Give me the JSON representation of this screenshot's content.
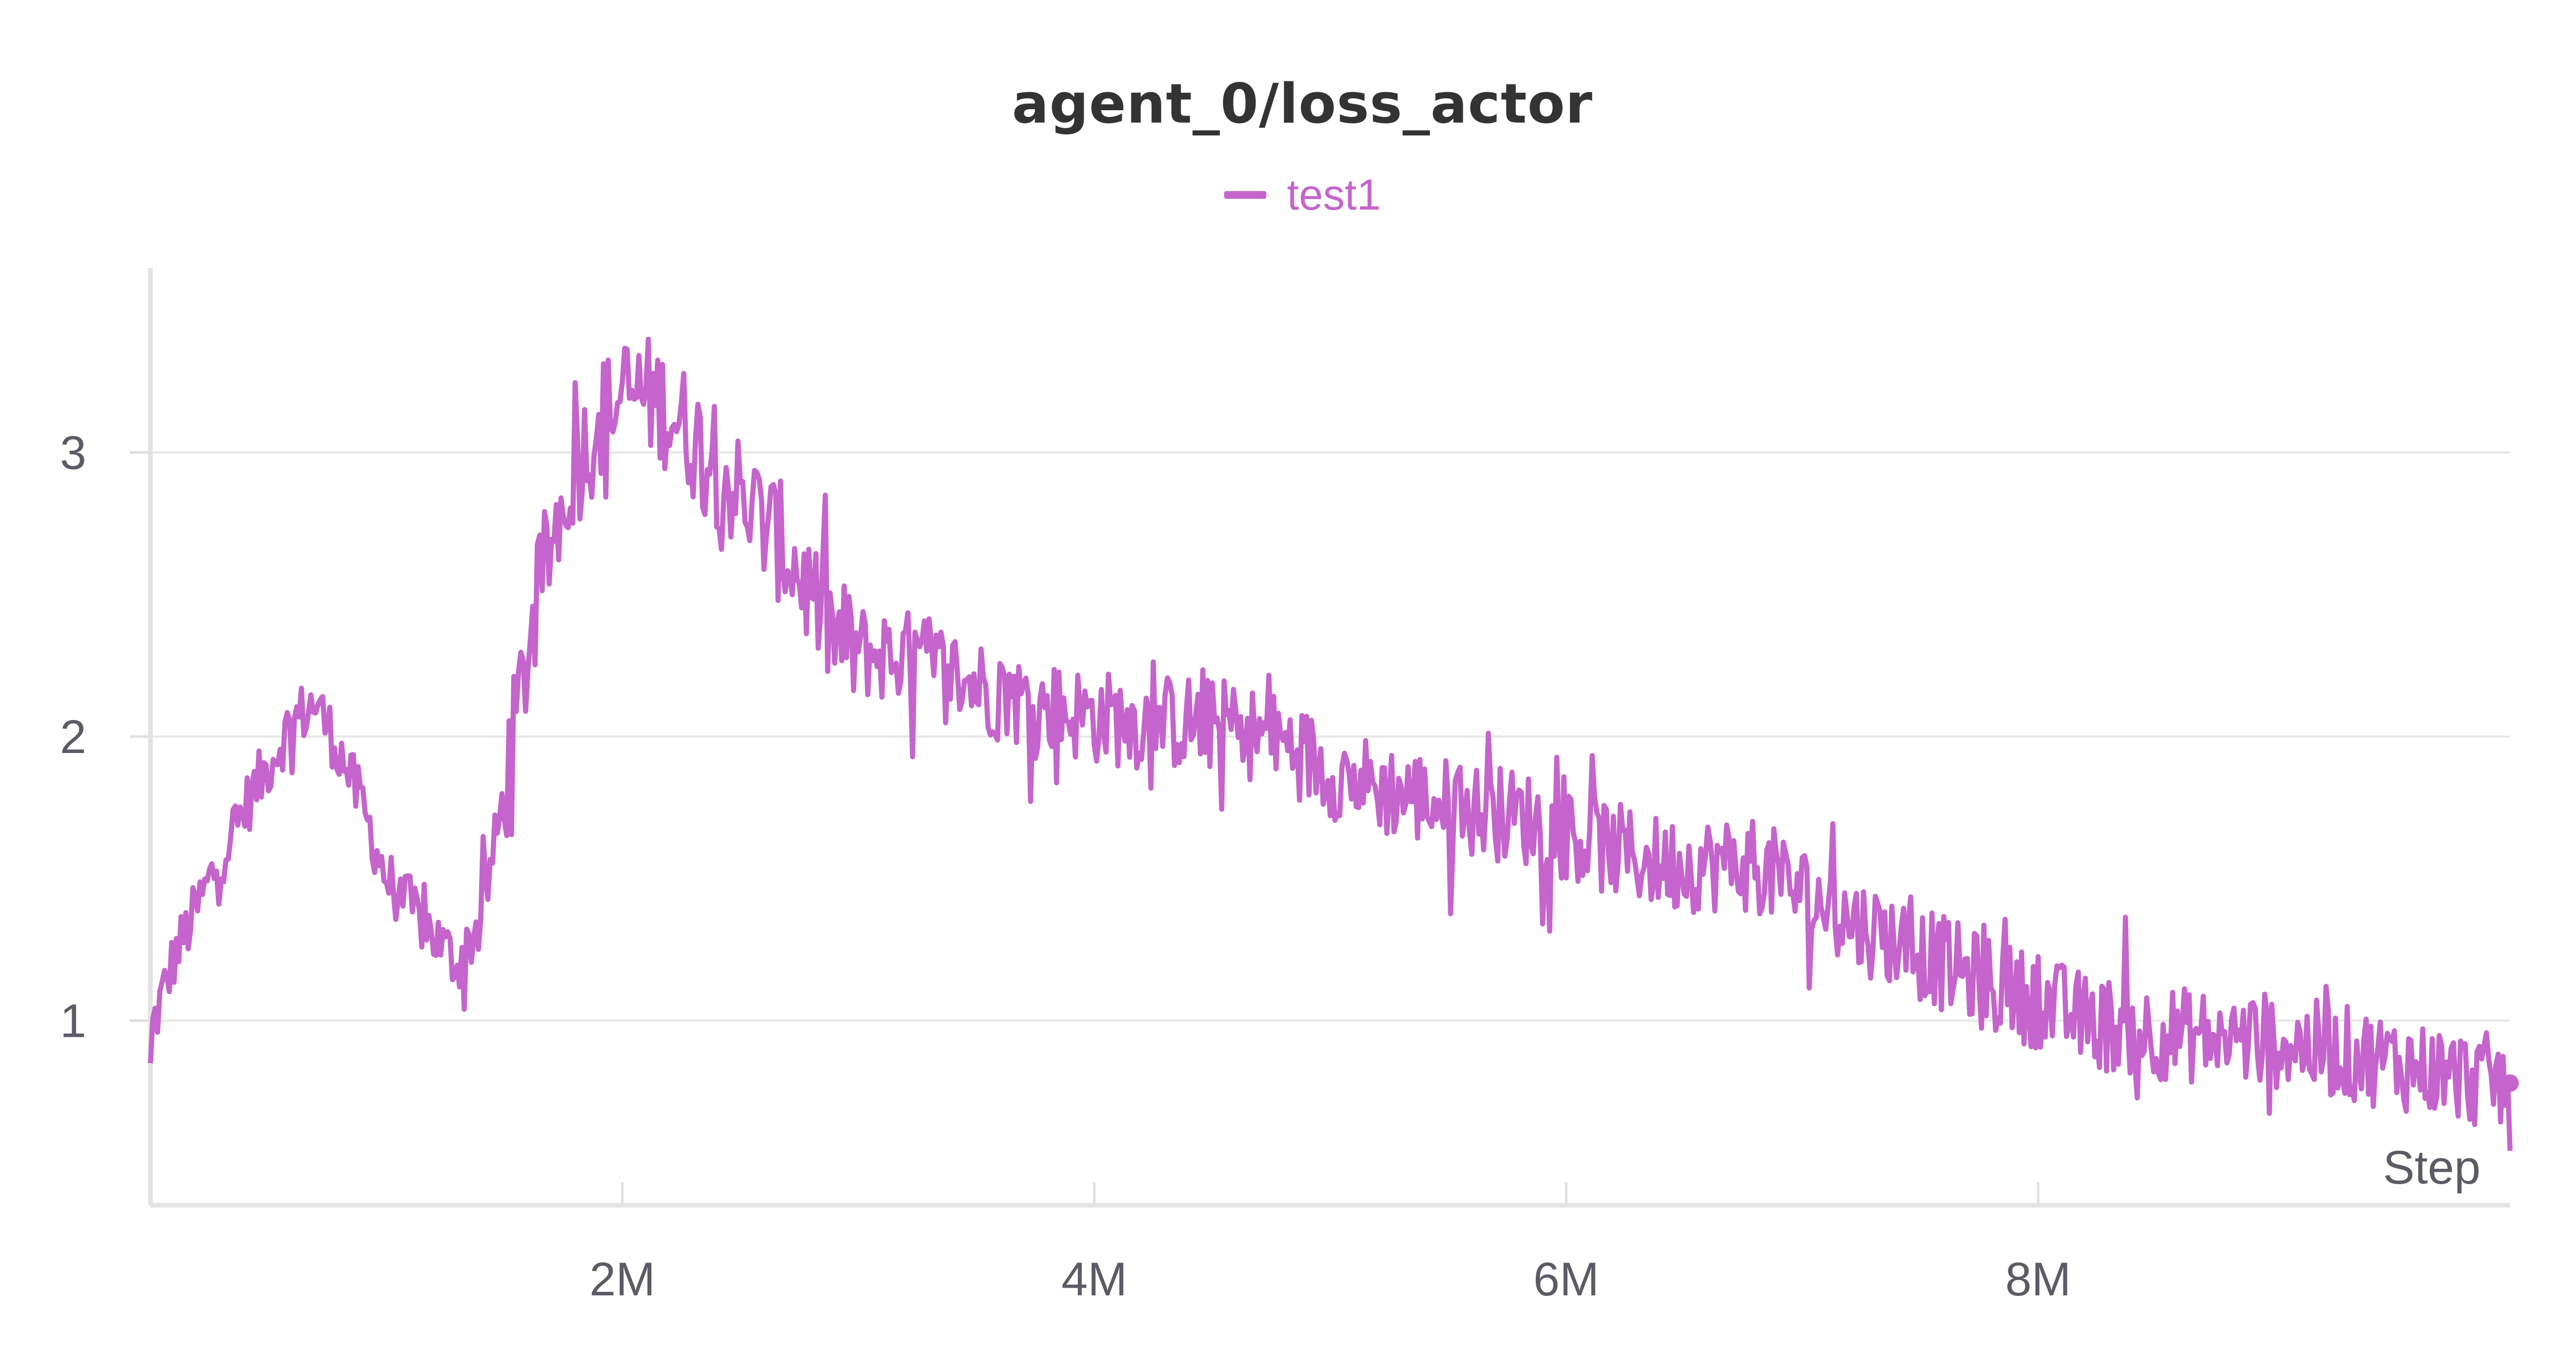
{
  "chart_data": {
    "type": "line",
    "title": "agent_0/loss_actor",
    "xlabel": "Step",
    "ylabel": "",
    "xlim": [
      0,
      10000000
    ],
    "ylim": [
      0.35,
      3.65
    ],
    "x_ticks": [
      {
        "value": 2000000,
        "label": "2M"
      },
      {
        "value": 4000000,
        "label": "4M"
      },
      {
        "value": 6000000,
        "label": "6M"
      },
      {
        "value": 8000000,
        "label": "8M"
      }
    ],
    "y_ticks": [
      {
        "value": 1,
        "label": "1"
      },
      {
        "value": 2,
        "label": "2"
      },
      {
        "value": 3,
        "label": "3"
      }
    ],
    "grid": true,
    "legend": "top-center",
    "series": [
      {
        "name": "test1",
        "color": "#c564cc",
        "x": [
          0,
          100000,
          200000,
          300000,
          400000,
          500000,
          600000,
          700000,
          800000,
          900000,
          1000000,
          1100000,
          1200000,
          1300000,
          1400000,
          1500000,
          1600000,
          1700000,
          1800000,
          1900000,
          2000000,
          2100000,
          2200000,
          2300000,
          2400000,
          2500000,
          2600000,
          2700000,
          2800000,
          2900000,
          3000000,
          3200000,
          3400000,
          3600000,
          3800000,
          4000000,
          4200000,
          4400000,
          4600000,
          4800000,
          5000000,
          5200000,
          5400000,
          5600000,
          5800000,
          6000000,
          6200000,
          6400000,
          6600000,
          6800000,
          7000000,
          7200000,
          7400000,
          7600000,
          7800000,
          8000000,
          8200000,
          8400000,
          8600000,
          8800000,
          9000000,
          9200000,
          9400000,
          9600000,
          9800000,
          10000000
        ],
        "values": [
          0.95,
          1.22,
          1.4,
          1.58,
          1.75,
          1.9,
          2.05,
          2.12,
          1.95,
          1.75,
          1.5,
          1.4,
          1.3,
          1.2,
          1.35,
          1.8,
          2.3,
          2.7,
          2.95,
          3.1,
          3.2,
          3.2,
          3.15,
          3.05,
          2.95,
          2.85,
          2.75,
          2.65,
          2.5,
          2.35,
          2.3,
          2.28,
          2.22,
          2.15,
          2.1,
          2.07,
          2.05,
          2.05,
          2.03,
          1.98,
          1.88,
          1.82,
          1.78,
          1.74,
          1.72,
          1.66,
          1.6,
          1.55,
          1.55,
          1.55,
          1.45,
          1.35,
          1.28,
          1.2,
          1.12,
          1.07,
          1.0,
          0.97,
          0.95,
          0.94,
          0.93,
          0.9,
          0.87,
          0.84,
          0.8,
          0.78
        ]
      }
    ]
  }
}
